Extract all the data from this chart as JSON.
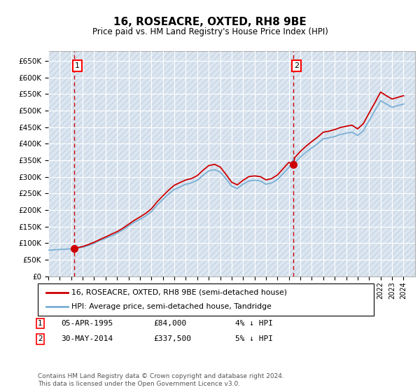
{
  "title": "16, ROSEACRE, OXTED, RH8 9BE",
  "subtitle": "Price paid vs. HM Land Registry's House Price Index (HPI)",
  "ylim": [
    0,
    680000
  ],
  "yticks": [
    0,
    50000,
    100000,
    150000,
    200000,
    250000,
    300000,
    350000,
    400000,
    450000,
    500000,
    550000,
    600000,
    650000
  ],
  "xlim_start": 1993.0,
  "xlim_end": 2025.0,
  "bg_color": "#dce6f1",
  "hatch_color": "#c8d4e3",
  "grid_color": "#ffffff",
  "hpi_color": "#7ab0d4",
  "price_color": "#cc0000",
  "sale1_year": 1995.27,
  "sale1_price": 84000,
  "sale2_year": 2014.41,
  "sale2_price": 337500,
  "legend_label1": "16, ROSEACRE, OXTED, RH8 9BE (semi-detached house)",
  "legend_label2": "HPI: Average price, semi-detached house, Tandridge",
  "footer": "Contains HM Land Registry data © Crown copyright and database right 2024.\nThis data is licensed under the Open Government Licence v3.0.",
  "hpi_data_x": [
    1993.0,
    1993.5,
    1994.0,
    1994.5,
    1995.0,
    1995.27,
    1995.5,
    1996.0,
    1996.5,
    1997.0,
    1997.5,
    1998.0,
    1998.5,
    1999.0,
    1999.5,
    2000.0,
    2000.5,
    2001.0,
    2001.5,
    2002.0,
    2002.5,
    2003.0,
    2003.5,
    2004.0,
    2004.5,
    2005.0,
    2005.5,
    2006.0,
    2006.5,
    2007.0,
    2007.5,
    2008.0,
    2008.5,
    2009.0,
    2009.5,
    2010.0,
    2010.5,
    2011.0,
    2011.5,
    2012.0,
    2012.5,
    2013.0,
    2013.5,
    2014.0,
    2014.41,
    2014.5,
    2015.0,
    2015.5,
    2016.0,
    2016.5,
    2017.0,
    2017.5,
    2018.0,
    2018.5,
    2019.0,
    2019.5,
    2020.0,
    2020.5,
    2021.0,
    2021.5,
    2022.0,
    2022.5,
    2023.0,
    2023.5,
    2024.0
  ],
  "hpi_data_y": [
    79000,
    80000,
    81000,
    82000,
    83000,
    87500,
    85000,
    88000,
    93000,
    100000,
    108000,
    115000,
    122000,
    130000,
    140000,
    152000,
    163000,
    172000,
    182000,
    195000,
    215000,
    232000,
    248000,
    262000,
    270000,
    278000,
    282000,
    290000,
    305000,
    318000,
    322000,
    315000,
    295000,
    272000,
    265000,
    278000,
    288000,
    290000,
    288000,
    278000,
    282000,
    292000,
    310000,
    328000,
    355000,
    342000,
    360000,
    375000,
    388000,
    400000,
    415000,
    418000,
    422000,
    428000,
    432000,
    435000,
    425000,
    440000,
    470000,
    500000,
    530000,
    520000,
    510000,
    515000,
    520000
  ],
  "price_data_x": [
    1995.27,
    1995.5,
    1996.0,
    1996.5,
    1997.0,
    1997.5,
    1998.0,
    1998.5,
    1999.0,
    1999.5,
    2000.0,
    2000.5,
    2001.0,
    2001.5,
    2002.0,
    2002.5,
    2003.0,
    2003.5,
    2004.0,
    2004.5,
    2005.0,
    2005.5,
    2006.0,
    2006.5,
    2007.0,
    2007.5,
    2008.0,
    2008.5,
    2009.0,
    2009.5,
    2010.0,
    2010.5,
    2011.0,
    2011.5,
    2012.0,
    2012.5,
    2013.0,
    2013.5,
    2014.0,
    2014.41,
    2014.5,
    2015.0,
    2015.5,
    2016.0,
    2016.5,
    2017.0,
    2017.5,
    2018.0,
    2018.5,
    2019.0,
    2019.5,
    2020.0,
    2020.5,
    2021.0,
    2021.5,
    2022.0,
    2022.5,
    2023.0,
    2023.5,
    2024.0
  ],
  "price_data_y": [
    84000,
    86000,
    90000,
    96000,
    103000,
    111000,
    119000,
    127000,
    135000,
    145000,
    157000,
    169000,
    179000,
    190000,
    204000,
    225000,
    243000,
    260000,
    275000,
    283000,
    291000,
    295000,
    304000,
    320000,
    334000,
    338000,
    330000,
    308000,
    284000,
    276000,
    290000,
    301000,
    303000,
    301000,
    291000,
    295000,
    306000,
    325000,
    344000,
    337500,
    358000,
    377000,
    393000,
    407000,
    420000,
    435000,
    438000,
    443000,
    449000,
    453000,
    456000,
    445000,
    461000,
    493000,
    524000,
    556000,
    545000,
    535000,
    540000,
    545000
  ]
}
